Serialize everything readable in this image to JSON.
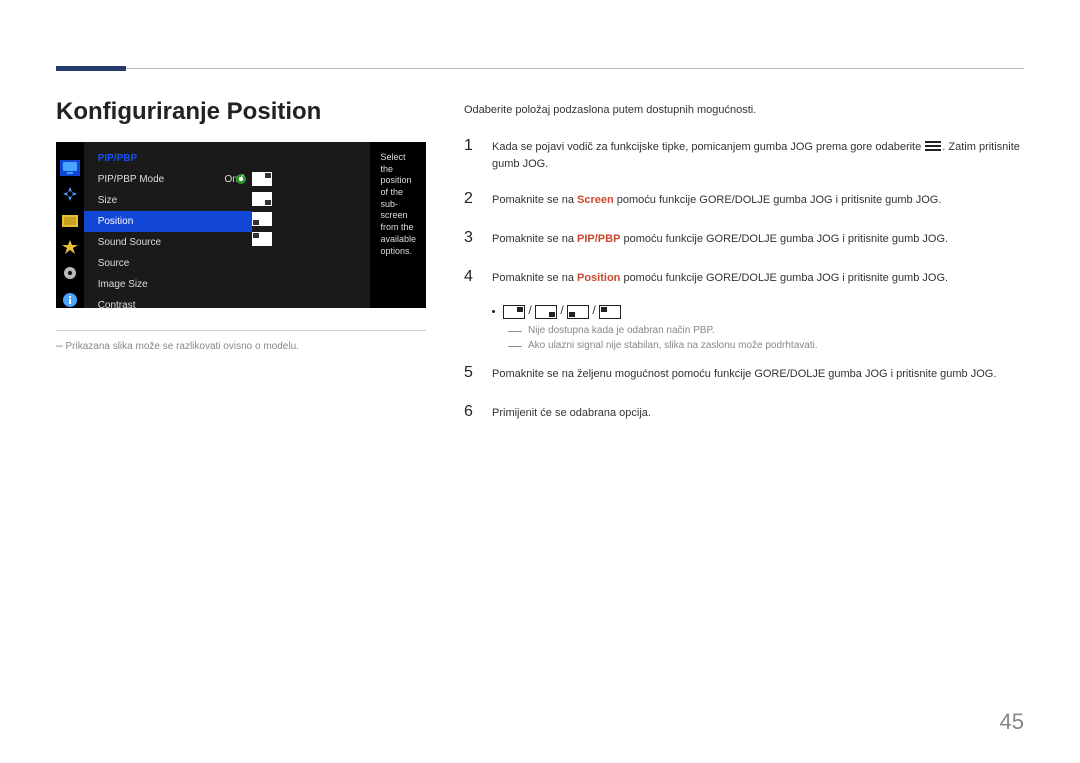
{
  "page": {
    "title": "Konfiguriranje Position",
    "number": "45"
  },
  "osd": {
    "header": "PIP/PBP",
    "help_text": "Select the position of the sub-screen from the available options.",
    "items": [
      {
        "label": "PIP/PBP Mode",
        "value": "On"
      },
      {
        "label": "Size",
        "value": ""
      },
      {
        "label": "Position",
        "value": ""
      },
      {
        "label": "Sound Source",
        "value": ""
      },
      {
        "label": "Source",
        "value": ""
      },
      {
        "label": "Image Size",
        "value": ""
      },
      {
        "label": "Contrast",
        "value": ""
      }
    ],
    "selected_index": 2,
    "position_options": [
      "tr",
      "br",
      "bl",
      "tl"
    ],
    "position_selected": 0,
    "sidebar_icons": [
      "monitor",
      "navigate",
      "image",
      "star",
      "gear",
      "info"
    ],
    "sidebar_active_index": 0,
    "colors": {
      "bg": "#1a1a1a",
      "icons_bg": "#000000",
      "header_color": "#1350ff",
      "selected_bg": "#1146d6",
      "help_bg": "#000000"
    }
  },
  "note_left": "Prikazana slika može se razlikovati ovisno o modelu.",
  "right": {
    "intro": "Odaberite položaj podzaslona putem dostupnih mogućnosti.",
    "steps": [
      {
        "n": "1",
        "pre": "Kada se pojavi vodič za funkcijske tipke, pomicanjem gumba JOG prema gore odaberite ",
        "icon": "menu",
        "post": ". Zatim pritisnite gumb JOG."
      },
      {
        "n": "2",
        "pre": "Pomaknite se na ",
        "kw": "Screen",
        "kw_class": "kw-screen",
        "post": " pomoću funkcije GORE/DOLJE gumba JOG i pritisnite gumb JOG."
      },
      {
        "n": "3",
        "pre": "Pomaknite se na ",
        "kw": "PIP/PBP",
        "kw_class": "kw-pip",
        "post": " pomoću funkcije GORE/DOLJE gumba JOG i pritisnite gumb JOG."
      },
      {
        "n": "4",
        "pre": "Pomaknite se na ",
        "kw": "Position",
        "kw_class": "kw-pos",
        "post": " pomoću funkcije GORE/DOLJE gumba JOG i pritisnite gumb JOG."
      }
    ],
    "position_icons": [
      "tr",
      "br",
      "bl",
      "tl"
    ],
    "subnotes": [
      "Nije dostupna kada je odabran način PBP.",
      "Ako ulazni signal nije stabilan, slika na zaslonu može podrhtavati."
    ],
    "steps_after": [
      {
        "n": "5",
        "text": "Pomaknite se na željenu mogućnost pomoću funkcije GORE/DOLJE gumba JOG i pritisnite gumb JOG."
      },
      {
        "n": "6",
        "text": "Primijenit će se odabrana opcija."
      }
    ]
  }
}
